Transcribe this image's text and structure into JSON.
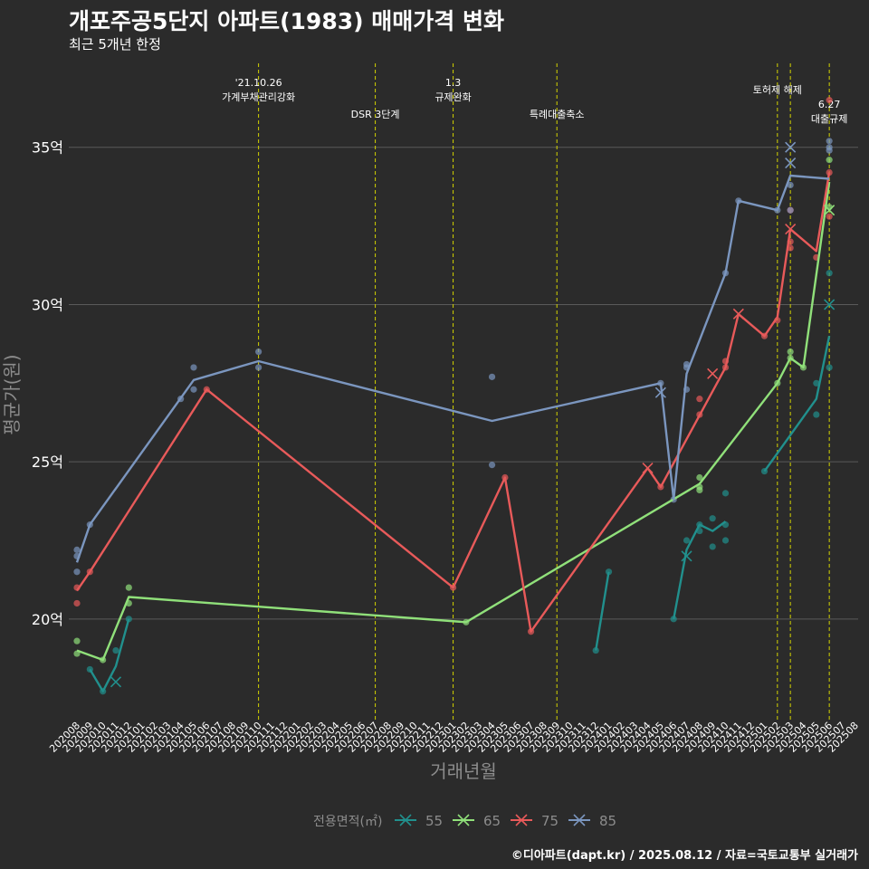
{
  "header": {
    "title": "개포주공5단지 아파트(1983) 매매가격 변화",
    "subtitle": "최근 5개년 한정"
  },
  "footer": {
    "caption": "©디아파트(dapt.kr) / 2025.08.12 / 자료=국토교통부 실거래가"
  },
  "colors": {
    "background": "#2b2b2b",
    "grid": "#5a5a5a",
    "event_line": "#d4d400",
    "series_55": "#21908d",
    "series_65": "#90e07a",
    "series_75": "#e85a5a",
    "series_85": "#7b96bf"
  },
  "chart_data": {
    "type": "line",
    "title": "개포주공5단지 아파트(1983) 매매가격 변화",
    "subtitle": "최근 5개년 한정",
    "xlabel": "거래년월",
    "ylabel": "평균가(원)",
    "x_categories": [
      "202008",
      "202009",
      "202010",
      "202011",
      "202012",
      "202101",
      "202102",
      "202103",
      "202104",
      "202105",
      "202106",
      "202107",
      "202108",
      "202109",
      "202110",
      "202111",
      "202112",
      "202201",
      "202202",
      "202203",
      "202204",
      "202205",
      "202206",
      "202207",
      "202208",
      "202209",
      "202210",
      "202211",
      "202212",
      "202301",
      "202302",
      "202303",
      "202304",
      "202305",
      "202306",
      "202307",
      "202308",
      "202309",
      "202310",
      "202311",
      "202312",
      "202401",
      "202402",
      "202403",
      "202404",
      "202405",
      "202406",
      "202407",
      "202408",
      "202409",
      "202410",
      "202411",
      "202412",
      "202501",
      "202502",
      "202503",
      "202504",
      "202505",
      "202506",
      "202507",
      "202508"
    ],
    "y_ticks": [
      {
        "value": 20,
        "label": "20억"
      },
      {
        "value": 25,
        "label": "25억"
      },
      {
        "value": 30,
        "label": "30억"
      },
      {
        "value": 35,
        "label": "35억"
      }
    ],
    "ylim": [
      16.8,
      37.9
    ],
    "y_unit": "억",
    "grid": true,
    "legend": {
      "title": "전용면적(㎡)",
      "position": "bottom",
      "entries": [
        "55",
        "65",
        "75",
        "85"
      ]
    },
    "events": [
      {
        "x": "202110",
        "label_lines": [
          "'21.10.26",
          "가계부채관리강화"
        ]
      },
      {
        "x": "202207",
        "label_lines": [
          "DSR 3단계"
        ]
      },
      {
        "x": "202301",
        "label_lines": [
          "1.3",
          "규제완화"
        ]
      },
      {
        "x": "202309",
        "label_lines": [
          "특례대출축소"
        ]
      },
      {
        "x": "202502",
        "label_lines": [
          "토허제 해제"
        ]
      },
      {
        "x": "202503",
        "label_lines": []
      },
      {
        "x": "202506",
        "label_lines": [
          "6.27",
          "대출규제"
        ]
      }
    ],
    "series": [
      {
        "name": "55",
        "color": "#21908d",
        "line": [
          [
            "202009",
            18.4
          ],
          [
            "202010",
            17.7
          ],
          [
            "202011",
            18.5
          ],
          [
            "202012",
            20.0
          ],
          null,
          [
            "202312",
            19.0
          ],
          [
            "202401",
            21.5
          ],
          null,
          [
            "202406",
            20.0
          ],
          [
            "202407",
            22.2
          ],
          [
            "202408",
            23.0
          ],
          [
            "202409",
            22.8
          ],
          [
            "202410",
            23.1
          ],
          null,
          [
            "202501",
            24.7
          ],
          [
            "202505",
            27.0
          ],
          [
            "202506",
            29.0
          ]
        ],
        "points": [
          [
            "202009",
            18.4
          ],
          [
            "202010",
            17.7
          ],
          [
            "202011",
            19.0
          ],
          [
            "202012",
            20.0
          ],
          [
            "202312",
            19.0
          ],
          [
            "202401",
            21.5
          ],
          [
            "202406",
            20.0
          ],
          [
            "202407",
            22.5
          ],
          [
            "202408",
            23.0
          ],
          [
            "202408",
            22.8
          ],
          [
            "202409",
            23.2
          ],
          [
            "202409",
            22.3
          ],
          [
            "202410",
            24.0
          ],
          [
            "202410",
            22.5
          ],
          [
            "202410",
            23.0
          ],
          [
            "202501",
            24.7
          ],
          [
            "202505",
            27.5
          ],
          [
            "202505",
            26.5
          ],
          [
            "202506",
            28.0
          ],
          [
            "202506",
            31.0
          ]
        ],
        "crosses": [
          [
            "202011",
            18.0
          ],
          [
            "202407",
            22.0
          ],
          [
            "202506",
            30.0
          ]
        ]
      },
      {
        "name": "65",
        "color": "#90e07a",
        "line": [
          [
            "202008",
            19.0
          ],
          [
            "202010",
            18.7
          ],
          [
            "202012",
            20.7
          ],
          [
            "202302",
            19.9
          ],
          [
            "202408",
            24.3
          ],
          [
            "202502",
            27.5
          ],
          [
            "202503",
            28.3
          ],
          [
            "202504",
            28.0
          ],
          [
            "202506",
            33.9
          ]
        ],
        "points": [
          [
            "202008",
            19.3
          ],
          [
            "202008",
            18.9
          ],
          [
            "202010",
            18.7
          ],
          [
            "202012",
            21.0
          ],
          [
            "202012",
            20.5
          ],
          [
            "202302",
            19.9
          ],
          [
            "202408",
            24.5
          ],
          [
            "202408",
            24.2
          ],
          [
            "202408",
            24.1
          ],
          [
            "202502",
            27.5
          ],
          [
            "202503",
            28.5
          ],
          [
            "202503",
            28.3
          ],
          [
            "202504",
            28.0
          ],
          [
            "202506",
            34.6
          ],
          [
            "202506",
            33.1
          ]
        ],
        "crosses": [
          [
            "202506",
            33.0
          ]
        ]
      },
      {
        "name": "75",
        "color": "#e85a5a",
        "line": [
          [
            "202008",
            20.9
          ],
          [
            "202009",
            21.5
          ],
          [
            "202106",
            27.3
          ],
          [
            "202301",
            21.0
          ],
          [
            "202305",
            24.5
          ],
          [
            "202307",
            19.6
          ],
          [
            "202404",
            24.8
          ],
          [
            "202405",
            24.2
          ],
          [
            "202410",
            28.0
          ],
          [
            "202411",
            29.7
          ],
          [
            "202501",
            29.0
          ],
          [
            "202502",
            29.6
          ],
          [
            "202503",
            32.4
          ],
          [
            "202505",
            31.7
          ],
          [
            "202506",
            34.2
          ]
        ],
        "points": [
          [
            "202008",
            21.0
          ],
          [
            "202008",
            20.5
          ],
          [
            "202009",
            21.5
          ],
          [
            "202106",
            27.3
          ],
          [
            "202301",
            21.0
          ],
          [
            "202305",
            24.5
          ],
          [
            "202307",
            19.6
          ],
          [
            "202405",
            24.2
          ],
          [
            "202408",
            27.0
          ],
          [
            "202408",
            26.5
          ],
          [
            "202410",
            28.2
          ],
          [
            "202410",
            28.0
          ],
          [
            "202501",
            29.0
          ],
          [
            "202502",
            29.5
          ],
          [
            "202503",
            33.0
          ],
          [
            "202503",
            32.0
          ],
          [
            "202503",
            31.8
          ],
          [
            "202505",
            31.5
          ],
          [
            "202506",
            34.2
          ],
          [
            "202506",
            36.5
          ],
          [
            "202506",
            32.8
          ]
        ],
        "crosses": [
          [
            "202404",
            24.8
          ],
          [
            "202409",
            27.8
          ],
          [
            "202411",
            29.7
          ],
          [
            "202503",
            32.4
          ]
        ]
      },
      {
        "name": "85",
        "color": "#7b96bf",
        "line": [
          [
            "202008",
            21.8
          ],
          [
            "202009",
            23.0
          ],
          [
            "202105",
            27.6
          ],
          [
            "202110",
            28.2
          ],
          [
            "202304",
            26.3
          ],
          [
            "202405",
            27.5
          ],
          [
            "202406",
            23.8
          ],
          [
            "202407",
            27.8
          ],
          [
            "202410",
            31.0
          ],
          [
            "202411",
            33.3
          ],
          [
            "202502",
            33.0
          ],
          [
            "202503",
            34.1
          ],
          [
            "202506",
            34.0
          ]
        ],
        "points": [
          [
            "202008",
            22.2
          ],
          [
            "202008",
            22.0
          ],
          [
            "202008",
            21.5
          ],
          [
            "202009",
            23.0
          ],
          [
            "202104",
            27.0
          ],
          [
            "202105",
            28.0
          ],
          [
            "202105",
            27.3
          ],
          [
            "202110",
            28.5
          ],
          [
            "202110",
            28.0
          ],
          [
            "202304",
            27.7
          ],
          [
            "202304",
            24.9
          ],
          [
            "202405",
            27.5
          ],
          [
            "202406",
            23.8
          ],
          [
            "202407",
            28.1
          ],
          [
            "202407",
            28.0
          ],
          [
            "202407",
            27.3
          ],
          [
            "202410",
            31.0
          ],
          [
            "202411",
            33.3
          ],
          [
            "202502",
            33.0
          ],
          [
            "202503",
            33.8
          ],
          [
            "202503",
            33.0
          ],
          [
            "202506",
            35.2
          ],
          [
            "202506",
            34.9
          ],
          [
            "202506",
            35.0
          ]
        ],
        "crosses": [
          [
            "202405",
            27.2
          ],
          [
            "202503",
            35.0
          ],
          [
            "202503",
            34.5
          ]
        ]
      }
    ]
  }
}
